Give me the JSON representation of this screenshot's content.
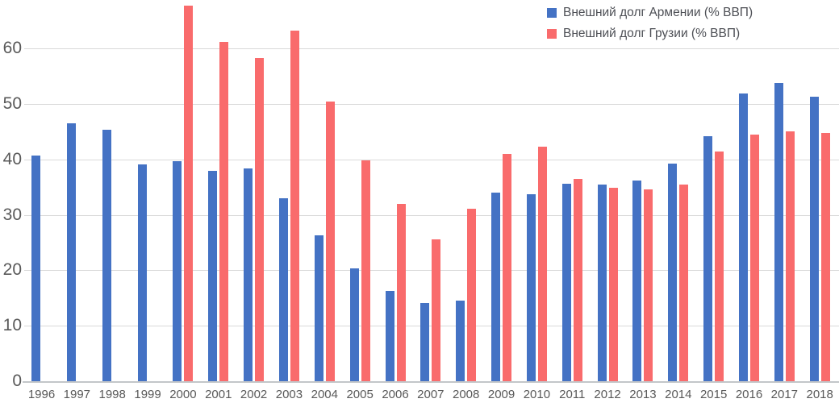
{
  "chart_data": {
    "type": "bar",
    "title": "",
    "xlabel": "",
    "ylabel": "",
    "categories": [
      "1996",
      "1997",
      "1998",
      "1999",
      "2000",
      "2001",
      "2002",
      "2003",
      "2004",
      "2005",
      "2006",
      "2007",
      "2008",
      "2009",
      "2010",
      "2011",
      "2012",
      "2013",
      "2014",
      "2015",
      "2016",
      "2017",
      "2018"
    ],
    "series": [
      {
        "name": "Внешний долг Армении (% ВВП)",
        "color": "#4472C4",
        "values": [
          40.7,
          46.5,
          45.3,
          39.1,
          39.6,
          37.9,
          38.3,
          33.0,
          26.3,
          20.4,
          16.2,
          14.1,
          14.6,
          34.0,
          33.7,
          35.6,
          35.5,
          36.2,
          39.2,
          44.1,
          51.9,
          53.7,
          51.3
        ]
      },
      {
        "name": "Внешний долг Грузии (% ВВП)",
        "color": "#F96B6C",
        "values": [
          null,
          null,
          null,
          null,
          67.7,
          61.2,
          58.2,
          63.2,
          50.4,
          39.8,
          32.0,
          25.5,
          31.1,
          41.0,
          42.3,
          36.5,
          34.9,
          34.6,
          35.5,
          41.4,
          44.4,
          45.1,
          44.7
        ]
      }
    ],
    "yticks": [
      0,
      10,
      20,
      30,
      40,
      50,
      60
    ],
    "ylim": [
      0,
      68
    ],
    "grid": true,
    "legend_position": "top-right"
  }
}
